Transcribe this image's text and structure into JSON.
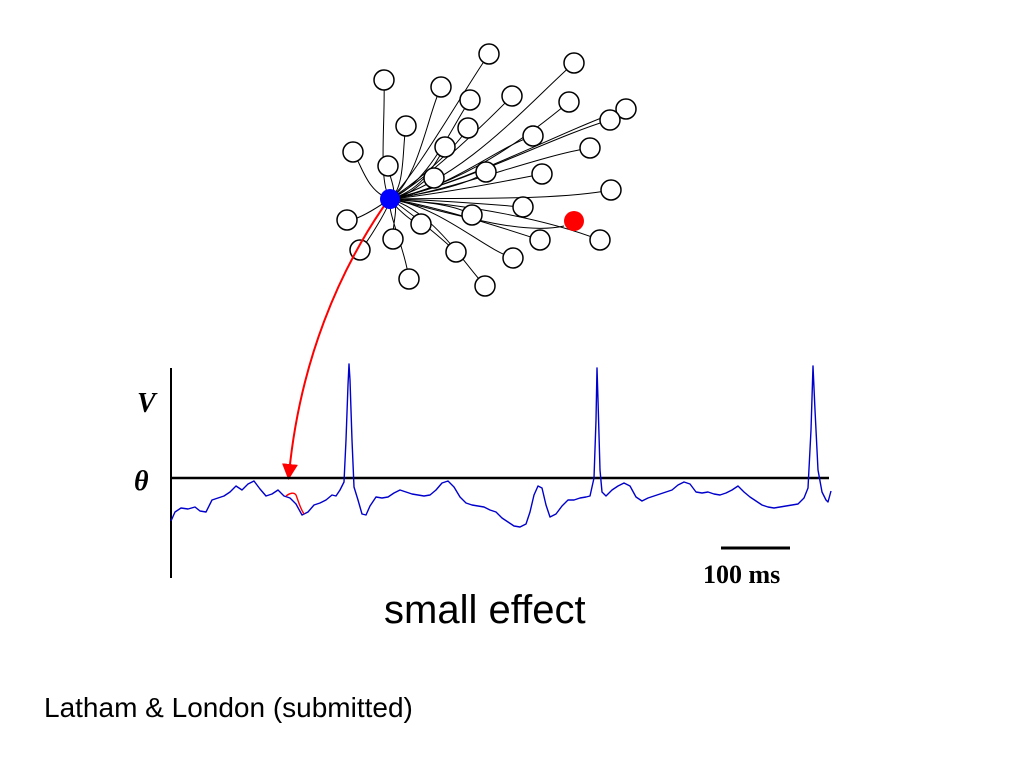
{
  "diagram": {
    "center_neuron_color": "#0000ff",
    "highlight_neuron_color": "#ff0000",
    "input_neuron_count": 32,
    "spike_count": 3
  },
  "axis": {
    "y_label": "V",
    "threshold_label": "θ"
  },
  "scale_bar": {
    "label": "100 ms"
  },
  "colors": {
    "trace": "#0000cc",
    "perturbation": "#ff0000",
    "axes": "#000000"
  },
  "caption": "small effect",
  "citation": "Latham & London (submitted)"
}
